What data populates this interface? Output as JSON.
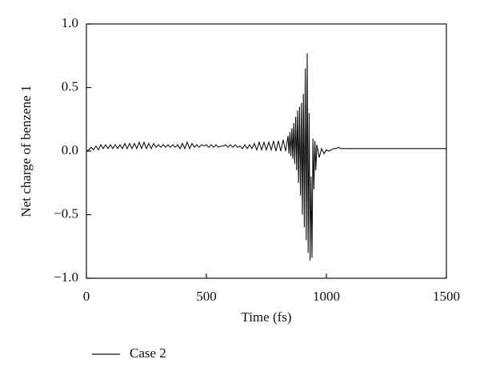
{
  "chart_data": {
    "type": "line",
    "x_label": "Time (fs)",
    "y_label": "Net charge of benzene 1",
    "xlim": [
      0,
      1500
    ],
    "xticks": [
      0,
      500,
      1000,
      1500
    ],
    "ylim": [
      -1,
      1
    ],
    "yticks": [
      {
        "value": -1,
        "label": "−1.0"
      },
      {
        "value": -0.5,
        "label": "−0.5"
      },
      {
        "value": 0,
        "label": "0.0"
      },
      {
        "value": 0.5,
        "label": "0.5"
      },
      {
        "value": 1,
        "label": "1.0"
      }
    ],
    "legend": "bottom-left",
    "x": [
      0,
      10,
      20,
      30,
      40,
      50,
      60,
      70,
      80,
      90,
      100,
      110,
      120,
      130,
      140,
      150,
      160,
      170,
      180,
      190,
      200,
      210,
      220,
      230,
      240,
      250,
      260,
      270,
      280,
      290,
      300,
      310,
      320,
      330,
      340,
      350,
      360,
      370,
      380,
      390,
      400,
      410,
      420,
      430,
      440,
      450,
      460,
      470,
      480,
      490,
      500,
      510,
      520,
      530,
      540,
      550,
      560,
      570,
      580,
      590,
      600,
      610,
      620,
      630,
      640,
      650,
      660,
      670,
      680,
      690,
      700,
      710,
      720,
      730,
      740,
      750,
      760,
      770,
      780,
      790,
      800,
      810,
      820,
      830,
      840,
      844,
      848,
      852,
      856,
      860,
      864,
      868,
      872,
      876,
      880,
      884,
      888,
      892,
      896,
      900,
      904,
      908,
      912,
      916,
      920,
      924,
      928,
      932,
      936,
      940,
      944,
      948,
      952,
      956,
      960,
      970,
      980,
      990,
      1000,
      1010,
      1020,
      1030,
      1040,
      1050,
      1060,
      1080,
      1100,
      1200,
      1300,
      1400,
      1500
    ],
    "series": [
      {
        "name": "Case 2",
        "color": "#111111",
        "values": [
          0.0,
          0.01,
          0.03,
          0.01,
          0.04,
          0.01,
          0.05,
          0.02,
          0.05,
          0.02,
          0.05,
          0.02,
          0.05,
          0.02,
          0.05,
          0.02,
          0.06,
          0.02,
          0.06,
          0.02,
          0.06,
          0.02,
          0.07,
          0.02,
          0.07,
          0.02,
          0.06,
          0.02,
          0.06,
          0.03,
          0.05,
          0.03,
          0.05,
          0.03,
          0.05,
          0.03,
          0.05,
          0.03,
          0.05,
          0.02,
          0.06,
          0.02,
          0.07,
          0.02,
          0.06,
          0.03,
          0.05,
          0.03,
          0.05,
          0.04,
          0.05,
          0.03,
          0.05,
          0.03,
          0.05,
          0.03,
          0.04,
          0.04,
          0.05,
          0.03,
          0.05,
          0.03,
          0.05,
          0.03,
          0.04,
          0.02,
          0.05,
          0.02,
          0.05,
          0.02,
          0.06,
          0.01,
          0.07,
          0.01,
          0.07,
          0.01,
          0.07,
          0.01,
          0.08,
          0.0,
          0.08,
          0.0,
          0.09,
          0.0,
          0.12,
          -0.02,
          0.15,
          -0.04,
          0.18,
          -0.06,
          0.22,
          -0.1,
          0.27,
          -0.15,
          0.32,
          -0.25,
          0.35,
          -0.35,
          0.38,
          -0.5,
          0.45,
          -0.6,
          0.65,
          -0.7,
          0.77,
          -0.8,
          0.3,
          -0.86,
          -0.2,
          -0.84,
          0.1,
          -0.3,
          0.08,
          -0.15,
          0.05,
          -0.05,
          0.02,
          -0.02,
          0.01,
          0.0,
          0.01,
          0.02,
          0.02,
          0.03,
          0.02,
          0.02,
          0.02,
          0.02,
          0.02,
          0.02,
          0.02
        ]
      }
    ]
  }
}
